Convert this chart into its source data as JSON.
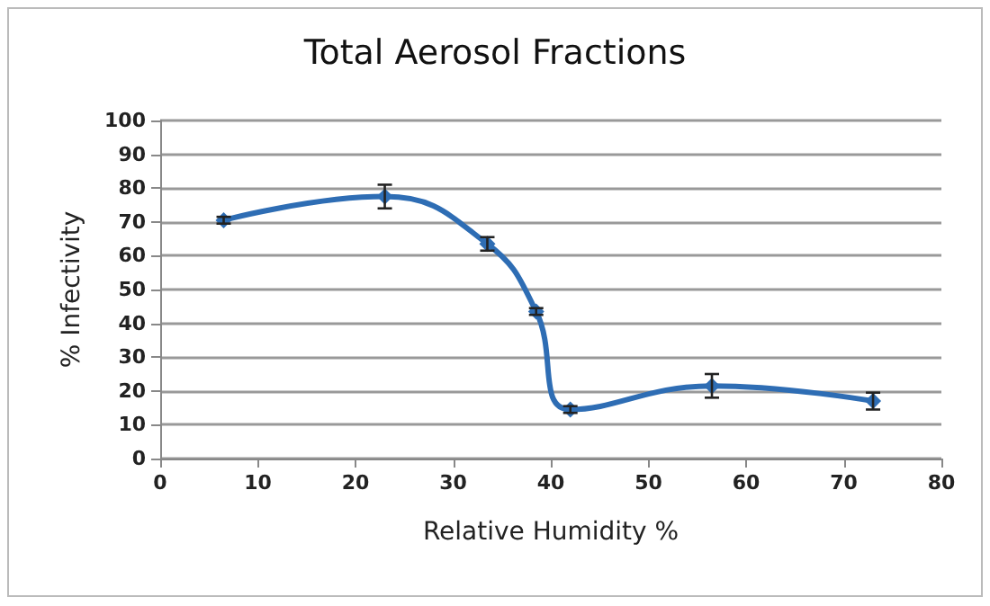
{
  "chart_data": {
    "type": "line",
    "title": "Total Aerosol Fractions",
    "xlabel": "Relative Humidity %",
    "ylabel": "% Infectivity",
    "x": [
      6.5,
      23,
      33.5,
      38.5,
      42,
      56.5,
      73
    ],
    "series": [
      {
        "color": "#2e6db4",
        "values": [
          70.5,
          77.5,
          63.5,
          43.5,
          14.5,
          21.5,
          17
        ],
        "errors": [
          1,
          3.5,
          2,
          1,
          1,
          3.5,
          2.5
        ]
      }
    ],
    "xlim": [
      0,
      80
    ],
    "xticks": [
      0,
      10,
      20,
      30,
      40,
      50,
      60,
      70,
      80
    ],
    "ylim": [
      0,
      100
    ],
    "yticks": [
      0,
      10,
      20,
      30,
      40,
      50,
      60,
      70,
      80,
      90,
      100
    ],
    "grid": "y",
    "marker": "diamond",
    "line_style": "solid"
  }
}
